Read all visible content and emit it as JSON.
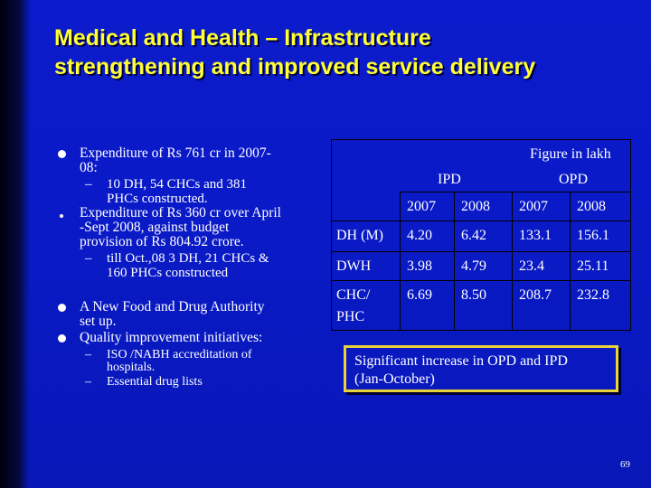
{
  "title": {
    "line1": "Medical and Health – Infrastructure",
    "line2": "strengthening and improved service delivery"
  },
  "bullets": {
    "item1": [
      "Expenditure of Rs 761 cr in 2007-",
      "08:"
    ],
    "item1_sub": [
      "10 DH, 54 CHCs and 381",
      "PHCs constructed."
    ],
    "item2": [
      "Expenditure of Rs 360 cr over April",
      "-Sept 2008, against budget",
      "provision of Rs 804.92 crore."
    ],
    "item2_sub": [
      "till Oct.,08 3 DH, 21 CHCs &",
      "160 PHCs constructed"
    ],
    "item3": [
      "A New Food and Drug Authority",
      "set up."
    ],
    "item4": "Quality improvement initiatives:",
    "item4_sub1": [
      "ISO /NABH accreditation of",
      "hospitals."
    ],
    "item4_sub2": "Essential drug lists",
    "dash": "–"
  },
  "table": {
    "note": "Figure in lakh",
    "group_ipd": "IPD",
    "group_opd": "OPD",
    "years": [
      "2007",
      "2008",
      "2007",
      "2008"
    ],
    "rows": [
      {
        "label": "DH (M)",
        "values": [
          "4.20",
          "6.42",
          "133.1",
          "156.1"
        ]
      },
      {
        "label": "DWH",
        "values": [
          "3.98",
          "4.79",
          "23.4",
          "25.11"
        ]
      },
      {
        "label": "CHC/",
        "label2": "PHC",
        "values": [
          "6.69",
          "8.50",
          "208.7",
          "232.8"
        ]
      }
    ]
  },
  "callout": {
    "line1": "Significant increase in OPD and IPD",
    "line2": "(Jan-October)"
  },
  "page_number": "69",
  "colors": {
    "background": "#0c1ccc",
    "title": "#ffff33",
    "callout_border": "#e8d23a"
  }
}
